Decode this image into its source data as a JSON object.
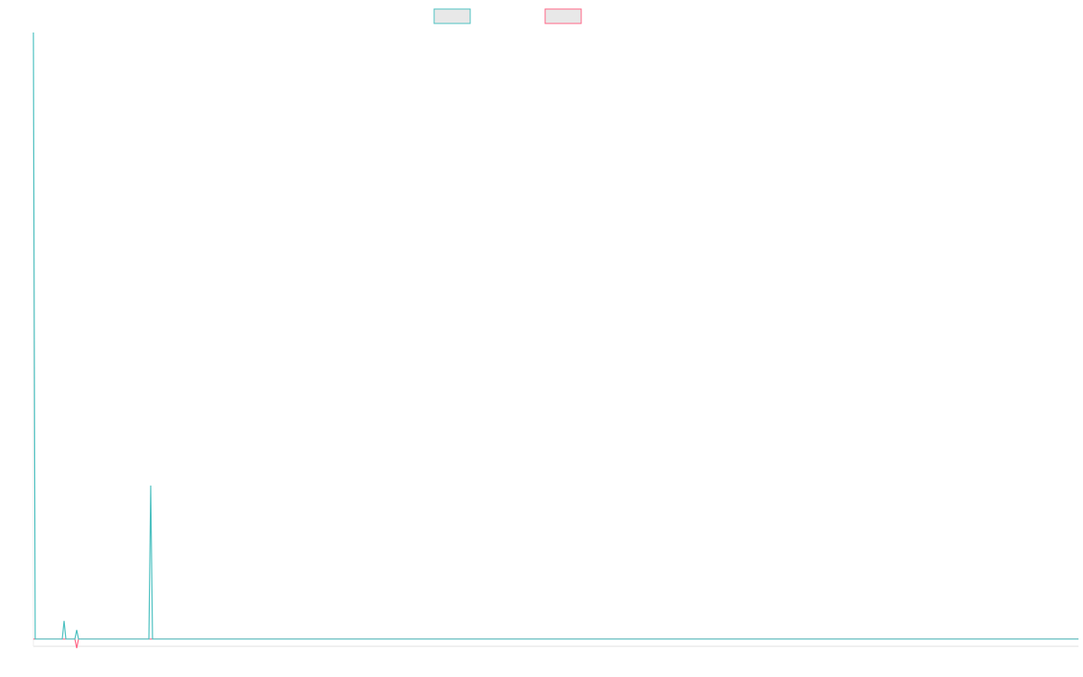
{
  "chart_data": {
    "type": "line",
    "x": [
      0,
      1,
      16,
      17,
      18,
      23,
      24,
      25,
      64,
      65,
      66,
      579
    ],
    "xlim": [
      0,
      579
    ],
    "ylim": [
      -1.5,
      100
    ],
    "series": [
      {
        "color": "#4bc0c0",
        "values": [
          100,
          0,
          0,
          3,
          0,
          0,
          1.5,
          0,
          0,
          25.3,
          0,
          0
        ]
      },
      {
        "color": "#ff6384",
        "values": [
          0,
          0,
          0,
          0,
          0,
          0,
          -1.5,
          0,
          0,
          0,
          0,
          0
        ]
      }
    ]
  }
}
